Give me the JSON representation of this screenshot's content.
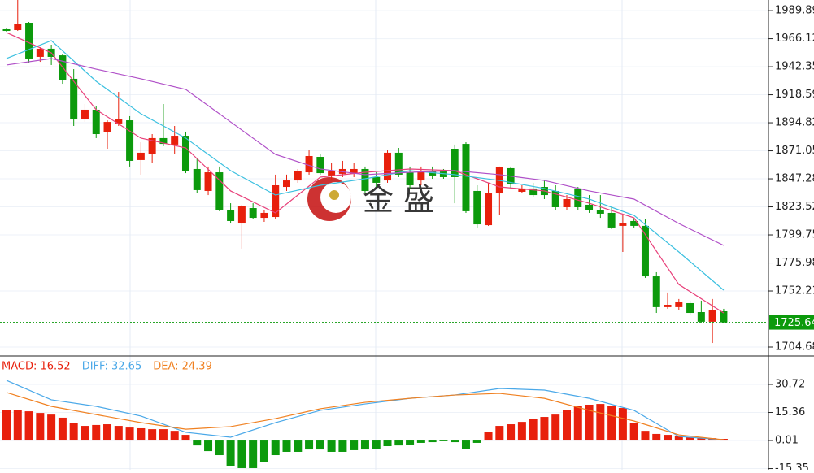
{
  "chart_data": [
    {
      "type": "candlestick",
      "ylim": [
        1697.1,
        1998.9
      ],
      "yticks": [
        1989.89,
        1966.12,
        1942.35,
        1918.59,
        1894.82,
        1871.05,
        1847.28,
        1823.52,
        1799.75,
        1775.98,
        1752.21,
        1704.68
      ],
      "up_color": "#e8200c",
      "down_color": "#0c9a0c",
      "last_price": 1725.64,
      "last_color": "#0c9a0c",
      "ohlc": [
        [
          1974.1,
          1974.8,
          1972.0,
          1972.7
        ],
        [
          1973.4,
          1998.9,
          1972.7,
          1978.9
        ],
        [
          1979.6,
          1980.3,
          1945.2,
          1949.3
        ],
        [
          1950.7,
          1958.9,
          1946.5,
          1957.6
        ],
        [
          1957.6,
          1961.0,
          1943.8,
          1950.7
        ],
        [
          1952.0,
          1953.4,
          1927.9,
          1930.7
        ],
        [
          1932.1,
          1940.3,
          1892.1,
          1897.6
        ],
        [
          1897.6,
          1910.7,
          1895.5,
          1905.9
        ],
        [
          1905.9,
          1909.3,
          1881.8,
          1885.2
        ],
        [
          1886.6,
          1896.9,
          1872.8,
          1895.5
        ],
        [
          1894.2,
          1921.0,
          1892.1,
          1897.6
        ],
        [
          1896.9,
          1900.4,
          1857.7,
          1862.5
        ],
        [
          1863.2,
          1878.3,
          1850.8,
          1869.4
        ],
        [
          1868.0,
          1885.2,
          1861.1,
          1881.8
        ],
        [
          1881.8,
          1910.7,
          1874.9,
          1876.9
        ],
        [
          1876.3,
          1892.1,
          1868.0,
          1883.8
        ],
        [
          1883.8,
          1887.3,
          1852.1,
          1854.2
        ],
        [
          1855.6,
          1864.5,
          1834.9,
          1837.7
        ],
        [
          1837.0,
          1857.7,
          1833.5,
          1852.8
        ],
        [
          1852.8,
          1857.7,
          1819.8,
          1821.1
        ],
        [
          1821.1,
          1826.6,
          1809.4,
          1811.5
        ],
        [
          1809.4,
          1825.3,
          1788.1,
          1823.9
        ],
        [
          1822.5,
          1826.6,
          1812.9,
          1814.2
        ],
        [
          1814.2,
          1821.1,
          1810.8,
          1818.4
        ],
        [
          1814.9,
          1850.8,
          1812.9,
          1841.8
        ],
        [
          1840.4,
          1850.8,
          1837.0,
          1845.9
        ],
        [
          1845.9,
          1855.6,
          1843.9,
          1854.2
        ],
        [
          1852.8,
          1871.4,
          1850.8,
          1866.6
        ],
        [
          1865.9,
          1868.0,
          1850.8,
          1852.1
        ],
        [
          1850.1,
          1861.1,
          1845.9,
          1854.2
        ],
        [
          1851.5,
          1862.5,
          1848.7,
          1855.6
        ],
        [
          1851.5,
          1861.1,
          1848.7,
          1855.6
        ],
        [
          1855.6,
          1857.7,
          1834.9,
          1837.0
        ],
        [
          1848.7,
          1852.8,
          1840.4,
          1843.9
        ],
        [
          1845.9,
          1871.4,
          1843.9,
          1869.4
        ],
        [
          1869.4,
          1873.5,
          1848.7,
          1850.8
        ],
        [
          1852.8,
          1857.7,
          1839.1,
          1841.8
        ],
        [
          1845.9,
          1857.7,
          1841.8,
          1854.2
        ],
        [
          1854.2,
          1857.7,
          1847.3,
          1850.1
        ],
        [
          1854.2,
          1855.6,
          1847.3,
          1848.7
        ],
        [
          1872.8,
          1876.3,
          1826.6,
          1848.7
        ],
        [
          1876.9,
          1878.3,
          1818.4,
          1819.8
        ],
        [
          1837.0,
          1841.8,
          1806.0,
          1808.7
        ],
        [
          1808.0,
          1843.9,
          1807.4,
          1834.9
        ],
        [
          1834.9,
          1857.7,
          1816.3,
          1857.0
        ],
        [
          1856.3,
          1857.7,
          1839.1,
          1842.5
        ],
        [
          1836.3,
          1841.8,
          1834.9,
          1839.1
        ],
        [
          1839.1,
          1843.9,
          1831.5,
          1833.5
        ],
        [
          1840.4,
          1845.9,
          1830.1,
          1833.5
        ],
        [
          1837.0,
          1841.8,
          1821.1,
          1823.2
        ],
        [
          1823.2,
          1833.5,
          1821.1,
          1830.1
        ],
        [
          1839.1,
          1840.4,
          1821.1,
          1823.2
        ],
        [
          1825.3,
          1833.5,
          1818.4,
          1820.5
        ],
        [
          1821.1,
          1833.5,
          1814.2,
          1817.7
        ],
        [
          1818.4,
          1823.2,
          1804.6,
          1806.0
        ],
        [
          1807.4,
          1816.3,
          1785.3,
          1809.4
        ],
        [
          1811.5,
          1814.2,
          1806.0,
          1807.4
        ],
        [
          1807.4,
          1812.9,
          1763.3,
          1764.6
        ],
        [
          1764.6,
          1768.1,
          1733.6,
          1738.5
        ],
        [
          1738.5,
          1750.9,
          1737.1,
          1740.5
        ],
        [
          1738.5,
          1745.4,
          1735.7,
          1742.6
        ],
        [
          1741.9,
          1744.0,
          1732.3,
          1733.6
        ],
        [
          1734.3,
          1744.0,
          1724.7,
          1726.1
        ],
        [
          1726.1,
          1745.4,
          1708.1,
          1735.7
        ],
        [
          1735.0,
          1737.1,
          1725.4,
          1725.64
        ]
      ],
      "lines": [
        {
          "color": "#e8407a",
          "x": [
            0,
            4,
            8,
            12,
            16,
            20,
            24,
            28,
            32,
            36,
            40,
            44,
            48,
            52,
            56,
            60,
            64
          ],
          "values": [
            1971.3,
            1954.1,
            1905.9,
            1881.8,
            1873.5,
            1837.0,
            1818.4,
            1848.7,
            1852.8,
            1855.6,
            1854.2,
            1840.4,
            1837.0,
            1826.6,
            1814.2,
            1757.7,
            1733.6
          ]
        },
        {
          "color": "#3cc0e0",
          "x": [
            0,
            4,
            8,
            12,
            16,
            20,
            24,
            28,
            32,
            36,
            40,
            44,
            48,
            52,
            56,
            60,
            64
          ],
          "values": [
            1949.3,
            1964.5,
            1930.0,
            1902.4,
            1881.8,
            1854.2,
            1833.5,
            1841.8,
            1847.3,
            1854.2,
            1850.8,
            1845.9,
            1839.1,
            1830.1,
            1816.3,
            1785.3,
            1752.9
          ]
        },
        {
          "color": "#b050c8",
          "x": [
            0,
            4,
            8,
            12,
            16,
            20,
            24,
            28,
            32,
            36,
            40,
            44,
            48,
            52,
            56,
            60,
            64
          ],
          "values": [
            1943.8,
            1949.3,
            1940.3,
            1932.1,
            1923.1,
            1895.5,
            1868.0,
            1855.6,
            1850.8,
            1852.8,
            1854.2,
            1850.8,
            1845.9,
            1837.0,
            1830.1,
            1809.4,
            1790.8
          ]
        }
      ],
      "watermark": "金 盛"
    },
    {
      "type": "macd",
      "ylim": [
        -16.0,
        45.4
      ],
      "yticks": [
        30.72,
        15.36,
        0.01,
        -15.35
      ],
      "histogram": {
        "label": "MACD: 16.52",
        "label_color": "#e8200c",
        "up_color": "#e8200c",
        "down_color": "#0c9a0c",
        "values": [
          16.9,
          16.5,
          16.0,
          15.1,
          14.2,
          12.5,
          9.8,
          8.0,
          8.5,
          8.9,
          8.0,
          7.1,
          6.7,
          6.2,
          6.2,
          5.3,
          3.1,
          -2.7,
          -5.8,
          -8.0,
          -14.2,
          -15.1,
          -15.1,
          -11.6,
          -8.0,
          -6.2,
          -6.2,
          -4.9,
          -4.9,
          -6.2,
          -6.2,
          -5.3,
          -4.9,
          -4.5,
          -3.1,
          -2.7,
          -2.2,
          -1.3,
          -0.9,
          -0.4,
          -0.9,
          -4.5,
          -1.3,
          4.5,
          8.0,
          8.9,
          10.2,
          11.6,
          12.9,
          14.2,
          16.5,
          18.7,
          19.6,
          20.0,
          19.1,
          17.8,
          9.8,
          5.3,
          3.6,
          3.1,
          2.7,
          1.8,
          1.3,
          1.3,
          0.9
        ]
      },
      "series": [
        {
          "label": "DIFF: 32.65",
          "color": "#4aa8e8",
          "x": [
            0,
            4,
            8,
            12,
            16,
            20,
            24,
            28,
            32,
            36,
            40,
            44,
            48,
            52,
            56,
            60,
            64
          ],
          "values": [
            32.9,
            22.3,
            18.7,
            13.4,
            4.5,
            1.8,
            9.8,
            16.5,
            20.0,
            23.1,
            24.9,
            28.5,
            27.6,
            23.1,
            16.5,
            2.2,
            0.4
          ]
        },
        {
          "label": "DEA: 24.39",
          "color": "#f08020",
          "x": [
            0,
            4,
            8,
            12,
            16,
            20,
            24,
            28,
            32,
            36,
            40,
            44,
            48,
            52,
            56,
            60,
            64
          ],
          "values": [
            26.3,
            18.7,
            14.2,
            9.8,
            6.2,
            7.6,
            12.0,
            17.4,
            20.9,
            23.1,
            24.9,
            25.8,
            23.1,
            16.5,
            10.7,
            3.1,
            0.4
          ]
        }
      ]
    }
  ]
}
